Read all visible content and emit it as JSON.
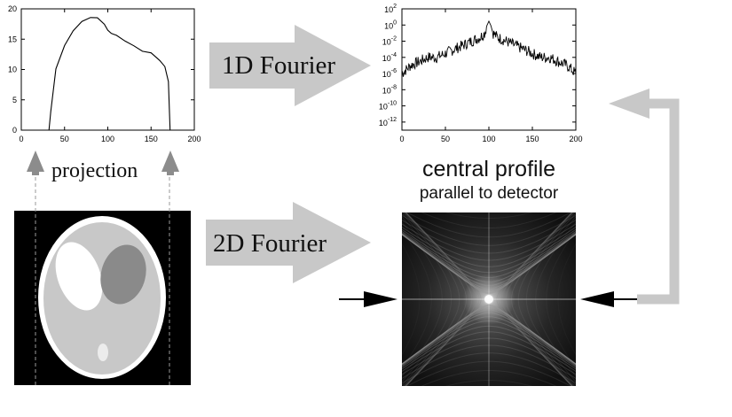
{
  "labels": {
    "projection": "projection",
    "fourier_1d": "1D Fourier",
    "fourier_2d": "2D Fourier",
    "central_profile": "central profile",
    "parallel_to_detector": "parallel to detector"
  },
  "colors": {
    "arrow_fill": "#c8c8c8",
    "arrow_dark": "#888888",
    "phantom_outer": "#ffffff",
    "phantom_body": "#c8c8c8",
    "phantom_dark_ellipse": "#8a8a8a",
    "background_black": "#000000"
  },
  "chart_data": [
    {
      "type": "line",
      "title": "",
      "xlabel": "",
      "ylabel": "",
      "x_ticks": [
        "0",
        "50",
        "100",
        "150",
        "200"
      ],
      "y_ticks": [
        "0",
        "5",
        "10",
        "15",
        "20"
      ],
      "xlim": [
        0,
        200
      ],
      "ylim": [
        0,
        20
      ],
      "x": [
        0,
        32,
        34,
        40,
        50,
        60,
        70,
        80,
        88,
        96,
        100,
        104,
        110,
        120,
        130,
        140,
        150,
        160,
        166,
        170,
        172,
        200
      ],
      "values": [
        0,
        0,
        3,
        10,
        14,
        16.5,
        18,
        18.5,
        18.6,
        17.5,
        16.4,
        16,
        15.6,
        14.6,
        13.8,
        13,
        12.8,
        11.5,
        10.5,
        8,
        0,
        0
      ]
    },
    {
      "type": "line",
      "title": "",
      "xlabel": "",
      "ylabel": "",
      "log_y": true,
      "x_ticks": [
        "0",
        "50",
        "100",
        "150",
        "200"
      ],
      "y_ticks": [
        "10^2",
        "10^0",
        "10^-2",
        "10^-4",
        "10^-6",
        "10^-8",
        "10^-10",
        "10^-12"
      ],
      "xlim": [
        0,
        200
      ],
      "ylim": [
        1e-13,
        100
      ],
      "x": [
        0,
        10,
        20,
        30,
        40,
        50,
        60,
        70,
        80,
        90,
        95,
        98,
        100,
        102,
        105,
        110,
        120,
        130,
        140,
        150,
        160,
        170,
        180,
        190,
        200
      ],
      "values": [
        1e-06,
        1e-05,
        3e-05,
        0.0001,
        0.0001,
        0.0003,
        0.001,
        0.003,
        0.01,
        0.03,
        0.1,
        1,
        3,
        1,
        0.1,
        0.03,
        0.01,
        0.003,
        0.001,
        0.0003,
        0.0001,
        0.0001,
        3e-05,
        1e-05,
        1e-06
      ]
    }
  ]
}
